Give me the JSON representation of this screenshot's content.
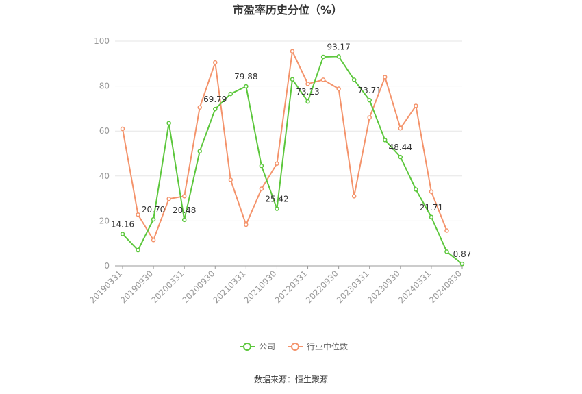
{
  "chart_data": {
    "type": "line",
    "title": "市盈率历史分位（%）",
    "ylim": [
      0,
      100
    ],
    "yticks": [
      0,
      20,
      40,
      60,
      80,
      100
    ],
    "grid": true,
    "legend_position": "bottom",
    "x": [
      "20190331",
      "20190630",
      "20190930",
      "20191231",
      "20200331",
      "20200630",
      "20200930",
      "20201231",
      "20210331",
      "20210630",
      "20210930",
      "20211231",
      "20220331",
      "20220630",
      "20220930",
      "20221231",
      "20230331",
      "20230630",
      "20230930",
      "20231231",
      "20240331",
      "20240630",
      "20240830"
    ],
    "xtick_labels": [
      "20190331",
      "20190930",
      "20200331",
      "20200930",
      "20210331",
      "20210930",
      "20220331",
      "20220930",
      "20230331",
      "20230930",
      "20240331",
      "20240830"
    ],
    "series": [
      {
        "name": "公司",
        "color": "#5cc73c",
        "values": [
          14.16,
          7.0,
          20.7,
          63.5,
          20.48,
          51.0,
          69.79,
          76.5,
          79.88,
          44.5,
          25.42,
          83.0,
          73.13,
          93.0,
          93.17,
          82.8,
          73.71,
          56.0,
          48.44,
          34.0,
          21.71,
          6.3,
          0.87
        ],
        "labels": [
          "14.16",
          "",
          "20.70",
          "",
          "20.48",
          "",
          "69.79",
          "",
          "79.88",
          "",
          "25.42",
          "",
          "73.13",
          "",
          "93.17",
          "",
          "73.71",
          "",
          "48.44",
          "",
          "21.71",
          "",
          "0.87"
        ]
      },
      {
        "name": "行业中位数",
        "color": "#f4936b",
        "values": [
          61.0,
          22.8,
          11.5,
          29.8,
          31.0,
          70.5,
          90.5,
          38.3,
          18.3,
          34.3,
          45.5,
          95.5,
          81.0,
          82.8,
          78.8,
          31.0,
          66.0,
          84.0,
          61.2,
          71.2,
          33.0,
          15.7,
          null
        ],
        "labels": []
      }
    ],
    "source": "数据来源：恒生聚源"
  }
}
